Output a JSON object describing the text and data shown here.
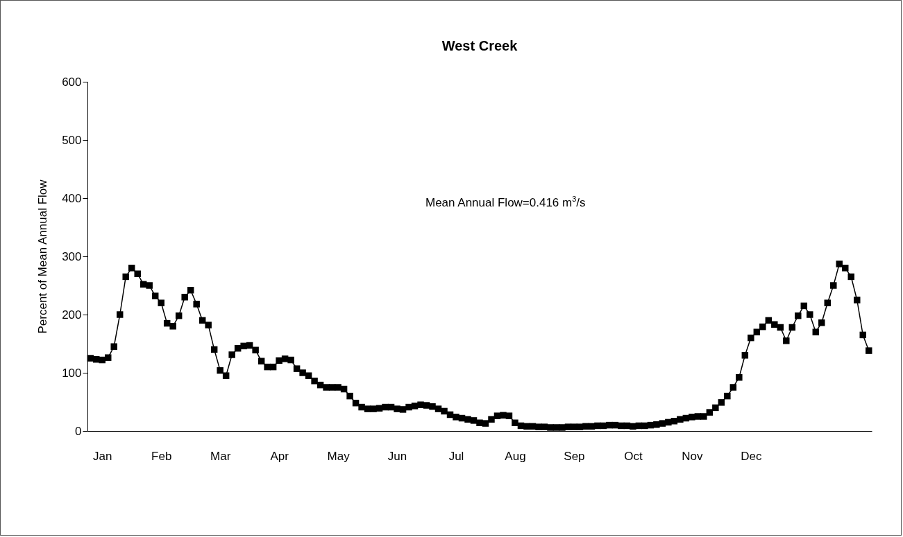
{
  "chart_data": {
    "type": "line",
    "title": "West Creek",
    "ylabel": "Percent of Mean Annual Flow",
    "annotations": [
      "Mean Annual Flow=0.416 m$^{3}$/s"
    ],
    "color": "#000000",
    "marker": "square",
    "line_style": "solid",
    "ylim": [
      0,
      600
    ],
    "yticks": [
      0,
      100,
      200,
      300,
      400,
      500,
      600
    ],
    "categories": [
      null,
      null,
      "Jan",
      null,
      null,
      null,
      null,
      null,
      null,
      null,
      null,
      null,
      "Feb",
      null,
      null,
      null,
      null,
      null,
      null,
      null,
      null,
      null,
      "Mar",
      null,
      null,
      null,
      null,
      null,
      null,
      null,
      null,
      null,
      "Apr",
      null,
      null,
      null,
      null,
      null,
      null,
      null,
      null,
      null,
      "May",
      null,
      null,
      null,
      null,
      null,
      null,
      null,
      null,
      null,
      "Jun",
      null,
      null,
      null,
      null,
      null,
      null,
      null,
      null,
      null,
      "Jul",
      null,
      null,
      null,
      null,
      null,
      null,
      null,
      null,
      null,
      "Aug",
      null,
      null,
      null,
      null,
      null,
      null,
      null,
      null,
      null,
      "Sep",
      null,
      null,
      null,
      null,
      null,
      null,
      null,
      null,
      null,
      "Oct",
      null,
      null,
      null,
      null,
      null,
      null,
      null,
      null,
      null,
      "Nov",
      null,
      null,
      null,
      null,
      null,
      null,
      null,
      null,
      null,
      "Dec",
      null,
      null,
      null,
      null,
      null,
      null,
      null,
      null,
      null,
      null,
      null,
      null,
      null,
      null,
      null,
      null,
      null,
      null,
      null,
      null
    ],
    "values": [
      125,
      123,
      122,
      126,
      145,
      200,
      265,
      280,
      270,
      252,
      250,
      232,
      220,
      185,
      180,
      198,
      230,
      242,
      218,
      190,
      182,
      140,
      104,
      95,
      131,
      142,
      146,
      147,
      139,
      120,
      110,
      110,
      121,
      124,
      122,
      107,
      100,
      95,
      86,
      79,
      75,
      75,
      75,
      72,
      60,
      48,
      41,
      38,
      38,
      39,
      41,
      41,
      38,
      37,
      41,
      43,
      45,
      44,
      42,
      38,
      34,
      28,
      24,
      22,
      20,
      18,
      14,
      13,
      20,
      26,
      27,
      26,
      14,
      9,
      8,
      8,
      7,
      7,
      6,
      6,
      6,
      7,
      7,
      7,
      8,
      8,
      9,
      9,
      10,
      10,
      9,
      9,
      8,
      9,
      9,
      10,
      11,
      13,
      15,
      17,
      20,
      22,
      24,
      25,
      25,
      32,
      40,
      49,
      60,
      75,
      92,
      130,
      160,
      170,
      179,
      190,
      183,
      178,
      155,
      178,
      198,
      215,
      200,
      170,
      186,
      220,
      250,
      287,
      280,
      265,
      225,
      165,
      138
    ]
  }
}
